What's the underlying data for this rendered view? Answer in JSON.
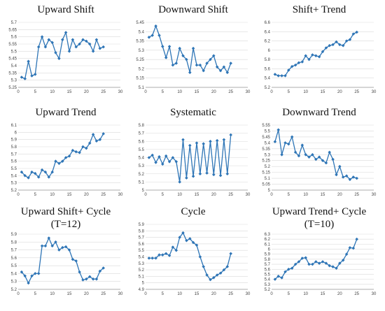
{
  "chart_data": [
    {
      "type": "line",
      "title": "Upward Shift",
      "x": [
        1,
        2,
        3,
        4,
        5,
        6,
        7,
        8,
        9,
        10,
        11,
        12,
        13,
        14,
        15,
        16,
        17,
        18,
        19,
        20,
        21,
        22,
        23,
        24,
        25
      ],
      "values": [
        5.32,
        5.31,
        5.43,
        5.33,
        5.34,
        5.53,
        5.6,
        5.53,
        5.58,
        5.56,
        5.49,
        5.45,
        5.58,
        5.63,
        5.5,
        5.58,
        5.53,
        5.55,
        5.58,
        5.57,
        5.55,
        5.5,
        5.58,
        5.52,
        5.53
      ],
      "ylim": [
        5.25,
        5.7
      ],
      "yticks": [
        "5.25",
        "5.3",
        "5.35",
        "5.4",
        "5.45",
        "5.5",
        "5.55",
        "5.6",
        "5.65",
        "5.7"
      ],
      "xlim": [
        0,
        30
      ],
      "xticks": [
        "0",
        "5",
        "10",
        "15",
        "20",
        "25",
        "30"
      ],
      "color": "#2e75b6"
    },
    {
      "type": "line",
      "title": "Downward Shift",
      "x": [
        1,
        2,
        3,
        4,
        5,
        6,
        7,
        8,
        9,
        10,
        11,
        12,
        13,
        14,
        15,
        16,
        17,
        18,
        19,
        20,
        21,
        22,
        23,
        24,
        25
      ],
      "values": [
        5.37,
        5.38,
        5.43,
        5.38,
        5.32,
        5.26,
        5.32,
        5.22,
        5.23,
        5.31,
        5.27,
        5.25,
        5.18,
        5.31,
        5.22,
        5.22,
        5.19,
        5.23,
        5.25,
        5.27,
        5.21,
        5.19,
        5.21,
        5.18,
        5.23
      ],
      "ylim": [
        5.1,
        5.45
      ],
      "yticks": [
        "5.1",
        "5.15",
        "5.2",
        "5.25",
        "5.3",
        "5.35",
        "5.4",
        "5.45"
      ],
      "xlim": [
        0,
        30
      ],
      "xticks": [
        "0",
        "5",
        "10",
        "15",
        "20",
        "25",
        "30"
      ],
      "color": "#2e75b6"
    },
    {
      "type": "line",
      "title": "Shift+ Trend",
      "x": [
        1,
        2,
        3,
        4,
        5,
        6,
        7,
        8,
        9,
        10,
        11,
        12,
        13,
        14,
        15,
        16,
        17,
        18,
        19,
        20,
        21,
        22,
        23,
        24,
        25
      ],
      "values": [
        5.48,
        5.45,
        5.45,
        5.45,
        5.57,
        5.65,
        5.68,
        5.73,
        5.75,
        5.88,
        5.8,
        5.9,
        5.88,
        5.86,
        5.97,
        6.05,
        6.1,
        6.12,
        6.18,
        6.12,
        6.1,
        6.2,
        6.23,
        6.35,
        6.39
      ],
      "ylim": [
        5.2,
        6.6
      ],
      "yticks": [
        "5.2",
        "5.4",
        "5.6",
        "5.8",
        "6",
        "6.2",
        "6.4",
        "6.6"
      ],
      "xlim": [
        0,
        30
      ],
      "xticks": [
        "0",
        "5",
        "10",
        "15",
        "20",
        "25",
        "30"
      ],
      "color": "#2e75b6"
    },
    {
      "type": "line",
      "title": "Upward Trend",
      "x": [
        1,
        2,
        3,
        4,
        5,
        6,
        7,
        8,
        9,
        10,
        11,
        12,
        13,
        14,
        15,
        16,
        17,
        18,
        19,
        20,
        21,
        22,
        23,
        24,
        25
      ],
      "values": [
        5.45,
        5.4,
        5.37,
        5.45,
        5.43,
        5.38,
        5.48,
        5.45,
        5.38,
        5.45,
        5.6,
        5.57,
        5.6,
        5.65,
        5.67,
        5.75,
        5.73,
        5.72,
        5.8,
        5.78,
        5.85,
        5.97,
        5.88,
        5.9,
        5.98
      ],
      "ylim": [
        5.2,
        6.1
      ],
      "yticks": [
        "5.2",
        "5.3",
        "5.4",
        "5.5",
        "5.6",
        "5.7",
        "5.8",
        "5.9",
        "6",
        "6.1"
      ],
      "xlim": [
        0,
        30
      ],
      "xticks": [
        "0",
        "5",
        "10",
        "15",
        "20",
        "25",
        "30"
      ],
      "color": "#2e75b6"
    },
    {
      "type": "line",
      "title": "Systematic",
      "x": [
        1,
        2,
        3,
        4,
        5,
        6,
        7,
        8,
        9,
        10,
        11,
        12,
        13,
        14,
        15,
        16,
        17,
        18,
        19,
        20,
        21,
        22,
        23,
        24,
        25
      ],
      "values": [
        5.4,
        5.43,
        5.34,
        5.41,
        5.32,
        5.42,
        5.35,
        5.4,
        5.35,
        5.1,
        5.62,
        5.15,
        5.55,
        5.17,
        5.58,
        5.2,
        5.57,
        5.21,
        5.6,
        5.19,
        5.61,
        5.18,
        5.62,
        5.2,
        5.68
      ],
      "ylim": [
        5,
        5.8
      ],
      "yticks": [
        "5",
        "5.1",
        "5.2",
        "5.3",
        "5.4",
        "5.5",
        "5.6",
        "5.7",
        "5.8"
      ],
      "xlim": [
        0,
        30
      ],
      "xticks": [
        "0",
        "5",
        "10",
        "15",
        "20",
        "25",
        "30"
      ],
      "color": "#2e75b6"
    },
    {
      "type": "line",
      "title": "Downward Trend",
      "x": [
        1,
        2,
        3,
        4,
        5,
        6,
        7,
        8,
        9,
        10,
        11,
        12,
        13,
        14,
        15,
        16,
        17,
        18,
        19,
        20,
        21,
        22,
        23,
        24,
        25
      ],
      "values": [
        5.41,
        5.51,
        5.3,
        5.4,
        5.39,
        5.45,
        5.32,
        5.29,
        5.38,
        5.3,
        5.28,
        5.3,
        5.26,
        5.28,
        5.25,
        5.23,
        5.32,
        5.26,
        5.13,
        5.2,
        5.11,
        5.12,
        5.09,
        5.11,
        5.1
      ],
      "ylim": [
        5,
        5.55
      ],
      "yticks": [
        "5",
        "5.05",
        "5.1",
        "5.15",
        "5.2",
        "5.25",
        "5.3",
        "5.35",
        "5.4",
        "5.45",
        "5.5",
        "5.55"
      ],
      "xlim": [
        0,
        30
      ],
      "xticks": [
        "0",
        "5",
        "10",
        "15",
        "20",
        "25",
        "30"
      ],
      "color": "#2e75b6"
    },
    {
      "type": "line",
      "title": "Upward Shift+ Cycle",
      "subtitle": "(T=12)",
      "x": [
        1,
        2,
        3,
        4,
        5,
        6,
        7,
        8,
        9,
        10,
        11,
        12,
        13,
        14,
        15,
        16,
        17,
        18,
        19,
        20,
        21,
        22,
        23,
        24,
        25
      ],
      "values": [
        5.42,
        5.37,
        5.28,
        5.37,
        5.4,
        5.4,
        5.75,
        5.75,
        5.85,
        5.75,
        5.8,
        5.7,
        5.73,
        5.74,
        5.7,
        5.58,
        5.56,
        5.42,
        5.32,
        5.33,
        5.36,
        5.33,
        5.33,
        5.43,
        5.47
      ],
      "ylim": [
        5.2,
        5.9
      ],
      "yticks": [
        "5.2",
        "5.3",
        "5.4",
        "5.5",
        "5.6",
        "5.7",
        "5.8",
        "5.9"
      ],
      "xlim": [
        0,
        30
      ],
      "xticks": [
        "0",
        "5",
        "10",
        "15",
        "20",
        "25",
        "30"
      ],
      "color": "#2e75b6"
    },
    {
      "type": "line",
      "title": "Cycle",
      "x": [
        1,
        2,
        3,
        4,
        5,
        6,
        7,
        8,
        9,
        10,
        11,
        12,
        13,
        14,
        15,
        16,
        17,
        18,
        19,
        20,
        21,
        22,
        23,
        24,
        25
      ],
      "values": [
        5.38,
        5.38,
        5.38,
        5.43,
        5.43,
        5.45,
        5.42,
        5.55,
        5.5,
        5.7,
        5.77,
        5.65,
        5.68,
        5.62,
        5.58,
        5.4,
        5.25,
        5.12,
        5.05,
        5.08,
        5.12,
        5.15,
        5.2,
        5.25,
        5.45
      ],
      "ylim": [
        4.9,
        5.9
      ],
      "yticks": [
        "4.9",
        "5",
        "5.1",
        "5.2",
        "5.3",
        "5.4",
        "5.5",
        "5.6",
        "5.7",
        "5.8",
        "5.9"
      ],
      "xlim": [
        0,
        30
      ],
      "xticks": [
        "0",
        "5",
        "10",
        "15",
        "20",
        "25",
        "30"
      ],
      "color": "#2e75b6"
    },
    {
      "type": "line",
      "title": "Upward Trend+ Cycle",
      "subtitle": "(T=10)",
      "x": [
        1,
        2,
        3,
        4,
        5,
        6,
        7,
        8,
        9,
        10,
        11,
        12,
        13,
        14,
        15,
        16,
        17,
        18,
        19,
        20,
        21,
        22,
        23,
        24,
        25
      ],
      "values": [
        5.4,
        5.46,
        5.43,
        5.55,
        5.6,
        5.62,
        5.7,
        5.75,
        5.82,
        5.83,
        5.7,
        5.7,
        5.75,
        5.72,
        5.75,
        5.72,
        5.67,
        5.65,
        5.62,
        5.72,
        5.78,
        5.9,
        6.03,
        6.02,
        6.2
      ],
      "ylim": [
        5.2,
        6.3
      ],
      "yticks": [
        "5.2",
        "5.3",
        "5.4",
        "5.5",
        "5.6",
        "5.7",
        "5.8",
        "5.9",
        "6",
        "6.1",
        "6.2",
        "6.3"
      ],
      "xlim": [
        0,
        30
      ],
      "xticks": [
        "0",
        "5",
        "10",
        "15",
        "20",
        "25",
        "30"
      ],
      "color": "#2e75b6"
    }
  ]
}
